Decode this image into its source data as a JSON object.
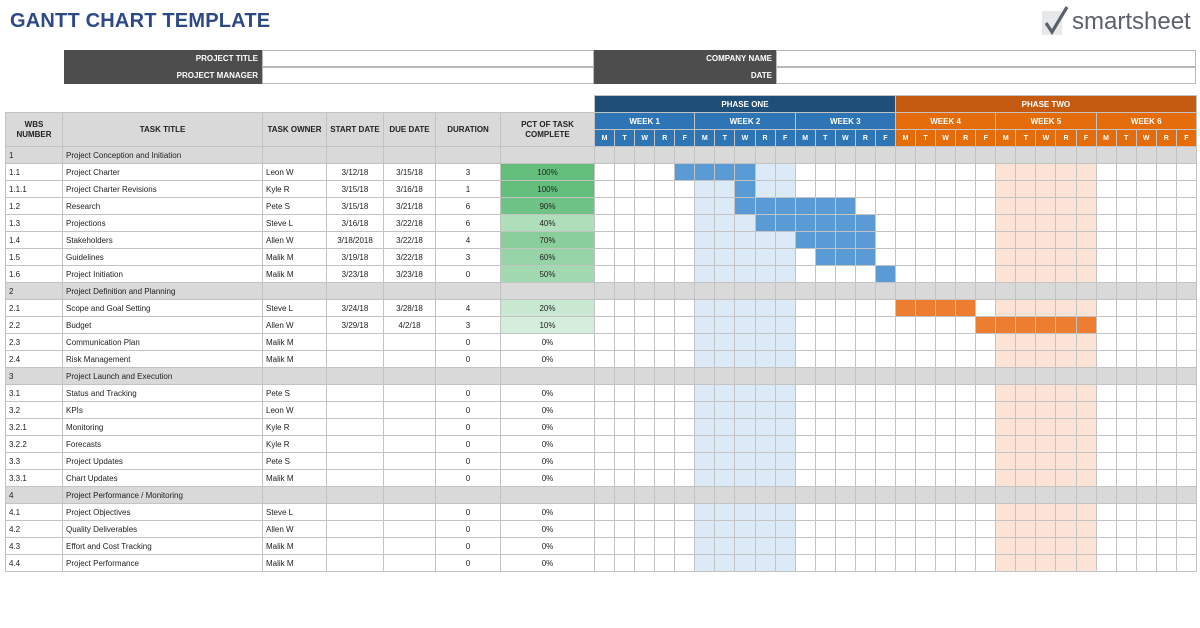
{
  "header": {
    "title": "GANTT CHART TEMPLATE",
    "logo_text": "smartsheet",
    "logo_check": "✓"
  },
  "info": {
    "project_title_label": "PROJECT TITLE",
    "project_manager_label": "PROJECT MANAGER",
    "company_name_label": "COMPANY NAME",
    "date_label": "DATE"
  },
  "columns": {
    "wbs": "WBS NUMBER",
    "task": "TASK TITLE",
    "owner": "TASK OWNER",
    "start": "START DATE",
    "due": "DUE DATE",
    "duration": "DURATION",
    "pct": "PCT OF TASK COMPLETE"
  },
  "phases": [
    "PHASE ONE",
    "PHASE TWO"
  ],
  "weeks": [
    "WEEK 1",
    "WEEK 2",
    "WEEK 3",
    "WEEK 4",
    "WEEK 5",
    "WEEK 6"
  ],
  "days": [
    "M",
    "T",
    "W",
    "R",
    "F"
  ],
  "colors": {
    "phase_one": "#1f4e79",
    "phase_two": "#c55a11",
    "week_blue": "#2e75b6",
    "week_orange": "#e46c0a",
    "bar_blue": "#5b9bd5",
    "bar_orange": "#ed7d31",
    "shade_blue": "#dce9f7",
    "shade_orange": "#fbe4d5",
    "title": "#2e4a86"
  },
  "rows": [
    {
      "wbs": "1",
      "task": "Project Conception and Initiation",
      "owner": "",
      "start": "",
      "due": "",
      "duration": "",
      "pct": "",
      "section": true
    },
    {
      "wbs": "1.1",
      "task": "Project Charter",
      "owner": "Leon W",
      "start": "3/12/18",
      "due": "3/15/18",
      "duration": "3",
      "pct": "100%",
      "pct_value": 1.0,
      "bar_color": "blue",
      "bar_start_day": 4,
      "bar_days": 4
    },
    {
      "wbs": "1.1.1",
      "task": "Project Charter Revisions",
      "owner": "Kyle R",
      "start": "3/15/18",
      "due": "3/16/18",
      "duration": "1",
      "pct": "100%",
      "pct_value": 1.0,
      "bar_color": "blue",
      "bar_start_day": 7,
      "bar_days": 1
    },
    {
      "wbs": "1.2",
      "task": "Research",
      "owner": "Pete S",
      "start": "3/15/18",
      "due": "3/21/18",
      "duration": "6",
      "pct": "90%",
      "pct_value": 0.9,
      "bar_color": "blue",
      "bar_start_day": 7,
      "bar_days": 6
    },
    {
      "wbs": "1.3",
      "task": "Projections",
      "owner": "Steve L",
      "start": "3/16/18",
      "due": "3/22/18",
      "duration": "6",
      "pct": "40%",
      "pct_value": 0.4,
      "bar_color": "blue",
      "bar_start_day": 8,
      "bar_days": 6
    },
    {
      "wbs": "1.4",
      "task": "Stakeholders",
      "owner": "Allen W",
      "start": "3/18/2018",
      "due": "3/22/18",
      "duration": "4",
      "pct": "70%",
      "pct_value": 0.7,
      "bar_color": "blue",
      "bar_start_day": 10,
      "bar_days": 4
    },
    {
      "wbs": "1.5",
      "task": "Guidelines",
      "owner": "Malik M",
      "start": "3/19/18",
      "due": "3/22/18",
      "duration": "3",
      "pct": "60%",
      "pct_value": 0.6,
      "bar_color": "blue",
      "bar_start_day": 11,
      "bar_days": 3
    },
    {
      "wbs": "1.6",
      "task": "Project Initiation",
      "owner": "Malik M",
      "start": "3/23/18",
      "due": "3/23/18",
      "duration": "0",
      "pct": "50%",
      "pct_value": 0.5,
      "bar_color": "blue",
      "bar_start_day": 14,
      "bar_days": 1
    },
    {
      "wbs": "2",
      "task": "Project Definition and Planning",
      "owner": "",
      "start": "",
      "due": "",
      "duration": "",
      "pct": "",
      "section": true
    },
    {
      "wbs": "2.1",
      "task": "Scope and Goal Setting",
      "owner": "Steve L",
      "start": "3/24/18",
      "due": "3/28/18",
      "duration": "4",
      "pct": "20%",
      "pct_value": 0.2,
      "bar_color": "orange",
      "bar_start_day": 15,
      "bar_days": 4
    },
    {
      "wbs": "2.2",
      "task": "Budget",
      "owner": "Allen W",
      "start": "3/29/18",
      "due": "4/2/18",
      "duration": "3",
      "pct": "10%",
      "pct_value": 0.1,
      "bar_color": "orange",
      "bar_start_day": 19,
      "bar_days": 6
    },
    {
      "wbs": "2.3",
      "task": "Communication Plan",
      "owner": "Malik M",
      "start": "",
      "due": "",
      "duration": "0",
      "pct": "0%",
      "pct_value": 0
    },
    {
      "wbs": "2.4",
      "task": "Risk Management",
      "owner": "Malik M",
      "start": "",
      "due": "",
      "duration": "0",
      "pct": "0%",
      "pct_value": 0
    },
    {
      "wbs": "3",
      "task": "Project Launch and Execution",
      "owner": "",
      "start": "",
      "due": "",
      "duration": "",
      "pct": "",
      "section": true
    },
    {
      "wbs": "3.1",
      "task": "Status and Tracking",
      "owner": "Pete S",
      "start": "",
      "due": "",
      "duration": "0",
      "pct": "0%",
      "pct_value": 0
    },
    {
      "wbs": "3.2",
      "task": "KPIs",
      "owner": "Leon W",
      "start": "",
      "due": "",
      "duration": "0",
      "pct": "0%",
      "pct_value": 0
    },
    {
      "wbs": "3.2.1",
      "task": "Monitoring",
      "owner": "Kyle R",
      "start": "",
      "due": "",
      "duration": "0",
      "pct": "0%",
      "pct_value": 0
    },
    {
      "wbs": "3.2.2",
      "task": "Forecasts",
      "owner": "Kyle R",
      "start": "",
      "due": "",
      "duration": "0",
      "pct": "0%",
      "pct_value": 0
    },
    {
      "wbs": "3.3",
      "task": "Project Updates",
      "owner": "Pete S",
      "start": "",
      "due": "",
      "duration": "0",
      "pct": "0%",
      "pct_value": 0
    },
    {
      "wbs": "3.3.1",
      "task": "Chart Updates",
      "owner": "Malik M",
      "start": "",
      "due": "",
      "duration": "0",
      "pct": "0%",
      "pct_value": 0
    },
    {
      "wbs": "4",
      "task": "Project Performance / Monitoring",
      "owner": "",
      "start": "",
      "due": "",
      "duration": "",
      "pct": "",
      "section": true
    },
    {
      "wbs": "4.1",
      "task": "Project Objectives",
      "owner": "Steve L",
      "start": "",
      "due": "",
      "duration": "0",
      "pct": "0%",
      "pct_value": 0
    },
    {
      "wbs": "4.2",
      "task": "Quality Deliverables",
      "owner": "Allen W",
      "start": "",
      "due": "",
      "duration": "0",
      "pct": "0%",
      "pct_value": 0
    },
    {
      "wbs": "4.3",
      "task": "Effort and Cost Tracking",
      "owner": "Malik M",
      "start": "",
      "due": "",
      "duration": "0",
      "pct": "0%",
      "pct_value": 0
    },
    {
      "wbs": "4.4",
      "task": "Project Performance",
      "owner": "Malik M",
      "start": "",
      "due": "",
      "duration": "0",
      "pct": "0%",
      "pct_value": 0
    }
  ]
}
